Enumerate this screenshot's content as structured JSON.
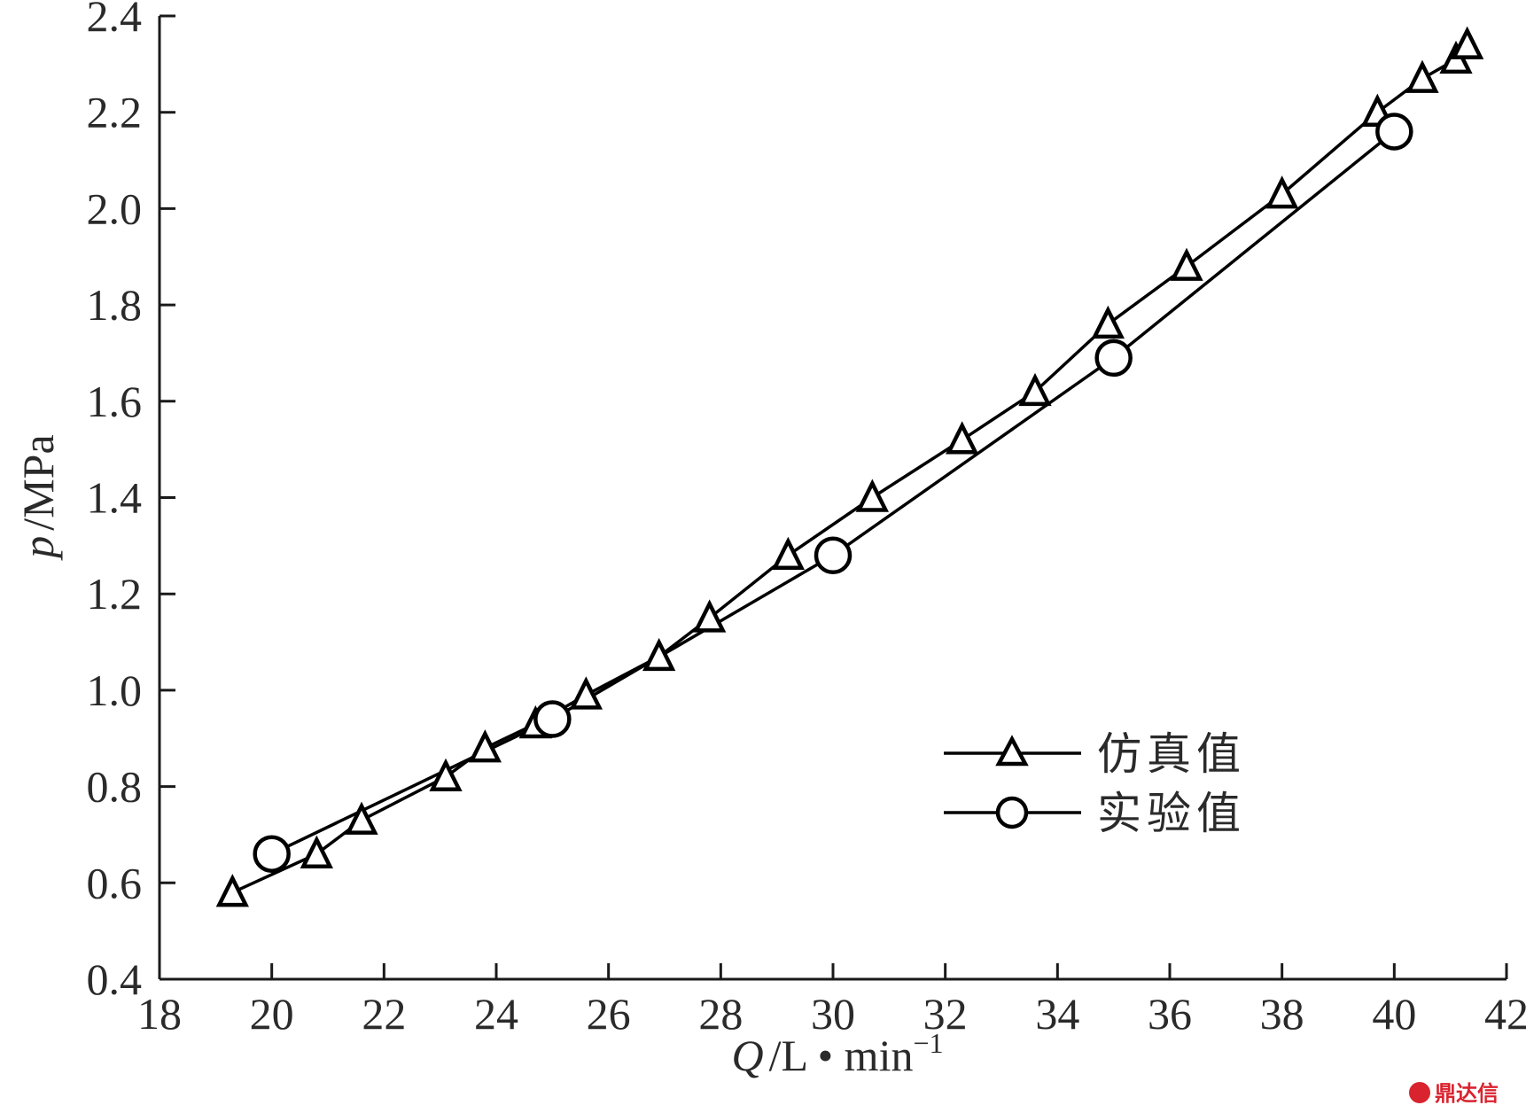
{
  "chart_data": {
    "type": "line",
    "title": "",
    "x_label": {
      "var": "Q",
      "unit": "L • min",
      "exp": "−1"
    },
    "y_label": {
      "var": "p",
      "unit": "MPa"
    },
    "xlim": [
      18,
      42
    ],
    "ylim": [
      0.4,
      2.4
    ],
    "x_ticks": [
      "18",
      "20",
      "22",
      "24",
      "26",
      "28",
      "30",
      "32",
      "34",
      "36",
      "38",
      "40",
      "42"
    ],
    "y_ticks": [
      "0.4",
      "0.6",
      "0.8",
      "1.0",
      "1.2",
      "1.4",
      "1.6",
      "1.8",
      "2.0",
      "2.2",
      "2.4"
    ],
    "legend_position": "center-right",
    "series": [
      {
        "name": "仿真值",
        "marker": "triangle",
        "x": [
          19.3,
          20.8,
          21.6,
          23.1,
          23.8,
          24.7,
          25.6,
          26.9,
          27.8,
          29.2,
          30.7,
          32.3,
          33.6,
          34.9,
          36.3,
          38.0,
          39.7,
          40.5,
          41.1,
          41.3
        ],
        "y": [
          0.58,
          0.66,
          0.73,
          0.82,
          0.88,
          0.93,
          0.99,
          1.07,
          1.15,
          1.28,
          1.4,
          1.52,
          1.62,
          1.76,
          1.88,
          2.03,
          2.2,
          2.27,
          2.31,
          2.34
        ]
      },
      {
        "name": "实验值",
        "marker": "circle",
        "x": [
          20,
          25,
          30,
          35,
          40
        ],
        "y": [
          0.66,
          0.94,
          1.28,
          1.69,
          2.16
        ]
      }
    ]
  },
  "watermark": {
    "text": "鼎达信"
  }
}
